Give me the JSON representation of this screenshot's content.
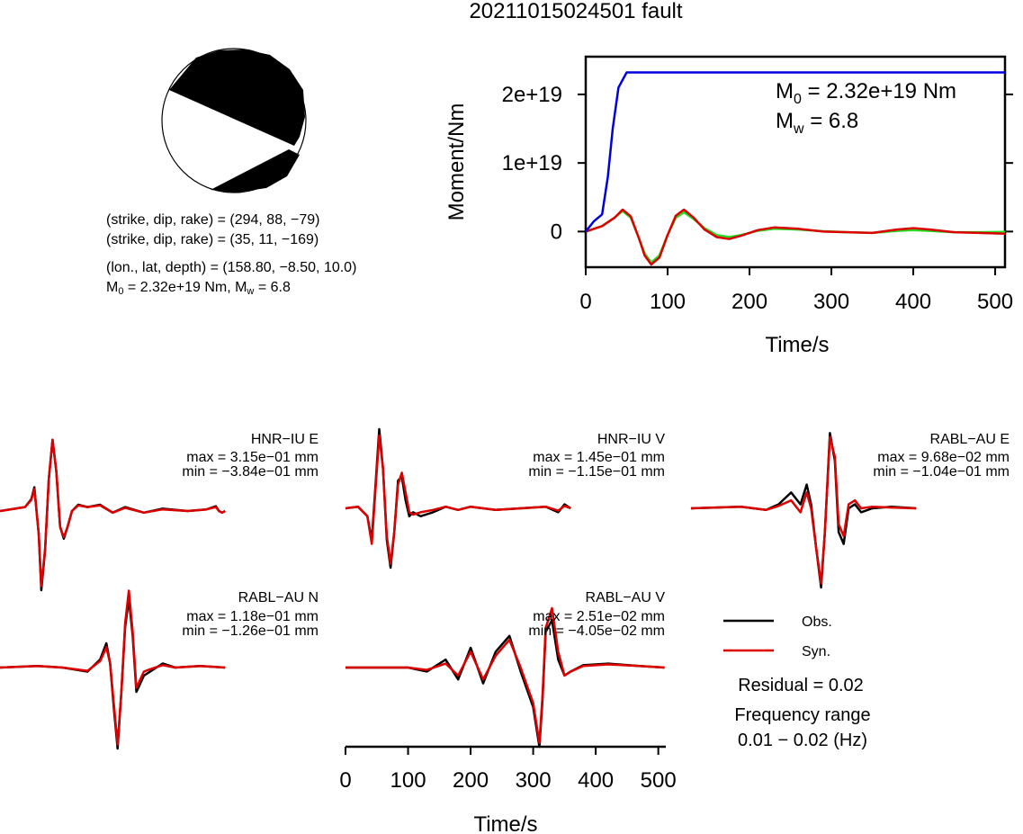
{
  "title": "20211015024501 fault",
  "beachball": {
    "lines": [
      "(strike, dip, rake) = (294, 88, −79)",
      "(strike, dip, rake) = (35, 11, −169)",
      "(lon., lat, depth) = (158.80, −8.50, 10.0)"
    ],
    "moment_text": "M",
    "moment_sub": "0",
    "moment_rest": " = 2.32e+19 Nm, M",
    "mw_sub": "w",
    "mw_rest": " = 6.8"
  },
  "colors": {
    "moment_curve": "#0000dd",
    "green_trace": "#22dd22",
    "obs": "#000000",
    "syn": "#dd0000"
  },
  "stf_panel": {
    "ylabel": "Moment/Nm",
    "xlabel": "Time/s",
    "m0_label": "M",
    "m0_sub": "0",
    "m0_value": " = 2.32e+19 Nm",
    "mw_label": "M",
    "mw_sub": "w",
    "mw_value": " = 6.8"
  },
  "waveforms": {
    "xlabel": "Time/s",
    "stations": [
      {
        "name": "HNR−IU E",
        "max": "max = 3.15e−01 mm",
        "min": "min = −3.84e−01 mm"
      },
      {
        "name": "HNR−IU V",
        "max": "max = 1.45e−01 mm",
        "min": "min = −1.15e−01 mm"
      },
      {
        "name": "RABL−AU E",
        "max": "max = 9.68e−02 mm",
        "min": "min = −1.04e−01 mm"
      },
      {
        "name": "RABL−AU N",
        "max": "max = 1.18e−01 mm",
        "min": "min = −1.26e−01 mm"
      },
      {
        "name": "RABL−AU V",
        "max": "max = 2.51e−02 mm",
        "min": "min = −4.05e−02 mm"
      }
    ]
  },
  "legend": {
    "obs": "Obs.",
    "syn": "Syn.",
    "residual": "Residual = 0.02",
    "freq_title": "Frequency range",
    "freq_value": "0.01 − 0.02 (Hz)"
  },
  "chart_data": [
    {
      "type": "line",
      "title": "20211015024501 fault",
      "xlabel": "Time/s",
      "ylabel": "Moment/Nm",
      "xlim": [
        0,
        512
      ],
      "ylim": [
        -5.2e+18,
        2.55e+19
      ],
      "xticks": [
        0,
        100,
        200,
        300,
        400,
        500
      ],
      "yticks": [
        {
          "v": 0,
          "label": "0"
        },
        {
          "v": 1e+19,
          "label": "1e+19"
        },
        {
          "v": 2e+19,
          "label": "2e+19"
        }
      ],
      "annotations": [
        "M0 = 2.32e+19 Nm",
        "Mw = 6.8"
      ],
      "series": [
        {
          "color": "#0000dd",
          "x": [
            0,
            10,
            20,
            27,
            33,
            40,
            50,
            60,
            100,
            200,
            300,
            400,
            512
          ],
          "y": [
            0,
            1.5e+18,
            2.5e+18,
            8e+18,
            1.5e+19,
            2.1e+19,
            2.32e+19,
            2.32e+19,
            2.32e+19,
            2.32e+19,
            2.32e+19,
            2.32e+19,
            2.32e+19
          ]
        },
        {
          "color": "#22dd22",
          "x": [
            0,
            20,
            35,
            45,
            55,
            65,
            72,
            80,
            90,
            100,
            110,
            120,
            132,
            145,
            160,
            175,
            190,
            210,
            230,
            260,
            290,
            320,
            350,
            380,
            400,
            420,
            450,
            480,
            512
          ],
          "y": [
            0,
            8e+17,
            2e+18,
            3e+18,
            2e+18,
            -1e+18,
            -3.2e+18,
            -4.5e+18,
            -3.5e+18,
            -5e+17,
            2e+18,
            2.8e+18,
            1.8e+18,
            5e+17,
            -5e+17,
            -8e+17,
            -5e+17,
            1e+17,
            4e+17,
            3e+17,
            5e+16,
            -1e+17,
            -2e+17,
            1e+17,
            2e+17,
            1e+17,
            -1e+17,
            -1e+17,
            -5e+16
          ]
        },
        {
          "color": "#dd0000",
          "x": [
            0,
            20,
            35,
            45,
            55,
            65,
            72,
            80,
            90,
            100,
            110,
            120,
            132,
            145,
            160,
            175,
            190,
            210,
            230,
            260,
            290,
            320,
            350,
            380,
            400,
            420,
            450,
            480,
            512
          ],
          "y": [
            0,
            8e+17,
            2e+18,
            3.2e+18,
            2.2e+18,
            -1e+18,
            -3.5e+18,
            -4.8e+18,
            -3.8e+18,
            -5e+17,
            2.3e+18,
            3.2e+18,
            2e+18,
            3e+17,
            -8e+17,
            -1.1e+18,
            -6e+17,
            2e+17,
            6e+17,
            4e+17,
            0,
            -1e+17,
            -2e+17,
            3e+17,
            5e+17,
            3e+17,
            -1e+17,
            -2e+17,
            -3e+17
          ]
        }
      ]
    },
    {
      "type": "line",
      "xlabel": "Time/s",
      "xlim": [
        0,
        512
      ],
      "xticks": [
        0,
        100,
        200,
        300,
        400,
        500
      ],
      "ylim": [
        -1,
        1
      ],
      "panels": [
        {
          "station": "HNR-IU E",
          "obs": {
            "x": [
              0,
              40,
              50,
              55,
              62,
              66,
              72,
              78,
              84,
              90,
              96,
              102,
              108,
              115,
              125,
              140,
              160,
              180,
              200,
              230,
              260,
              300,
              330,
              345,
              350,
              355,
              360
            ],
            "y": [
              0,
              0.05,
              0.15,
              0.3,
              -0.3,
              -1.0,
              -0.5,
              0.4,
              0.9,
              0.5,
              -0.2,
              -0.35,
              -0.2,
              0,
              0.08,
              0.05,
              0.08,
              -0.02,
              0.05,
              -0.02,
              0.03,
              0,
              0.02,
              0.06,
              0,
              -0.02,
              0
            ]
          },
          "syn": {
            "x": [
              0,
              40,
              50,
              55,
              62,
              66,
              72,
              78,
              84,
              90,
              96,
              102,
              108,
              115,
              125,
              140,
              160,
              180,
              200,
              230,
              260,
              300,
              330,
              345,
              350,
              355,
              360
            ],
            "y": [
              0,
              0.05,
              0.14,
              0.28,
              -0.3,
              -0.95,
              -0.48,
              0.4,
              0.9,
              0.5,
              -0.2,
              -0.33,
              -0.2,
              0,
              0.07,
              0.05,
              0.07,
              -0.02,
              0.04,
              -0.02,
              0.02,
              0,
              0.02,
              0.05,
              0,
              -0.02,
              0
            ]
          }
        },
        {
          "station": "HNR-IU V",
          "obs": {
            "x": [
              0,
              20,
              35,
              42,
              48,
              54,
              60,
              66,
              72,
              78,
              84,
              90,
              96,
              102,
              108,
              120,
              140,
              160,
              180,
              200,
              240,
              280,
              320,
              340,
              350,
              360
            ],
            "y": [
              0,
              0.02,
              -0.1,
              -0.4,
              0.3,
              1.0,
              0.5,
              -0.4,
              -0.75,
              -0.3,
              0.35,
              0.4,
              0.1,
              -0.1,
              -0.05,
              -0.1,
              -0.05,
              0.02,
              -0.02,
              0.02,
              -0.02,
              0,
              0.02,
              -0.05,
              0.05,
              0
            ]
          },
          "syn": {
            "x": [
              0,
              20,
              35,
              42,
              48,
              54,
              60,
              66,
              72,
              78,
              84,
              90,
              96,
              102,
              108,
              120,
              140,
              160,
              180,
              200,
              240,
              280,
              320,
              340,
              350,
              360
            ],
            "y": [
              0,
              0.02,
              -0.1,
              -0.45,
              0.25,
              0.92,
              0.5,
              -0.35,
              -0.7,
              -0.3,
              0.3,
              0.45,
              0.2,
              -0.05,
              -0.08,
              -0.05,
              -0.02,
              0.02,
              -0.02,
              0.02,
              -0.02,
              0,
              0.02,
              -0.03,
              0.03,
              0
            ]
          }
        },
        {
          "station": "RABL-AU E",
          "obs": {
            "x": [
              0,
              80,
              120,
              140,
              160,
              175,
              185,
              192,
              200,
              208,
              214,
              222,
              230,
              236,
              244,
              252,
              262,
              272,
              290,
              320,
              360
            ],
            "y": [
              0,
              0.02,
              -0.02,
              0.05,
              0.2,
              0.05,
              0.3,
              0.05,
              -0.5,
              -1.0,
              -0.3,
              0.95,
              0.6,
              -0.3,
              -0.45,
              0,
              0.05,
              -0.05,
              0,
              0.02,
              0
            ]
          },
          "syn": {
            "x": [
              0,
              80,
              120,
              140,
              160,
              175,
              185,
              192,
              200,
              208,
              214,
              222,
              230,
              236,
              244,
              252,
              262,
              272,
              290,
              320,
              360
            ],
            "y": [
              0,
              0.02,
              -0.02,
              0.03,
              0.1,
              -0.05,
              0.2,
              0,
              -0.5,
              -0.95,
              -0.3,
              0.9,
              0.65,
              -0.2,
              -0.35,
              0.05,
              0.1,
              0,
              0.02,
              0.01,
              0
            ]
          }
        },
        {
          "station": "RABL-AU N",
          "obs": {
            "x": [
              0,
              60,
              100,
              140,
              160,
              170,
              176,
              182,
              188,
              194,
              200,
              206,
              212,
              218,
              224,
              230,
              240,
              260,
              280,
              320,
              360
            ],
            "y": [
              0,
              0.02,
              0,
              -0.05,
              0.1,
              0.3,
              0.05,
              -0.5,
              -1.0,
              -0.3,
              0.5,
              0.85,
              0.4,
              -0.3,
              -0.2,
              -0.1,
              -0.05,
              0.05,
              0,
              0.02,
              0
            ]
          },
          "syn": {
            "x": [
              0,
              60,
              100,
              140,
              160,
              170,
              176,
              182,
              188,
              194,
              200,
              206,
              212,
              218,
              224,
              230,
              240,
              260,
              280,
              320,
              360
            ],
            "y": [
              0,
              0.02,
              0,
              -0.04,
              0.08,
              0.25,
              0.05,
              -0.45,
              -0.95,
              -0.3,
              0.55,
              0.95,
              0.45,
              -0.25,
              -0.15,
              -0.05,
              -0.02,
              0.03,
              0,
              0.02,
              0
            ]
          }
        },
        {
          "station": "RABL-AU V",
          "obs": {
            "x": [
              0,
              100,
              130,
              160,
              180,
              200,
              220,
              240,
              262,
              280,
              300,
              310,
              315,
              320,
              330,
              340,
              350,
              360,
              380,
              420,
              470,
              510
            ],
            "y": [
              0,
              0,
              -0.05,
              0.1,
              -0.15,
              0.25,
              -0.2,
              0.2,
              0.4,
              -0.05,
              -0.5,
              -1.0,
              -0.4,
              0.45,
              0.6,
              0.1,
              -0.1,
              -0.05,
              0.03,
              0.05,
              0.02,
              0
            ]
          },
          "syn": {
            "x": [
              0,
              100,
              130,
              160,
              180,
              200,
              220,
              240,
              262,
              280,
              300,
              310,
              315,
              320,
              330,
              340,
              350,
              360,
              380,
              420,
              470,
              510
            ],
            "y": [
              0,
              0,
              -0.03,
              0.05,
              -0.1,
              0.2,
              -0.15,
              0.15,
              0.35,
              0,
              -0.45,
              -0.95,
              -0.35,
              0.5,
              0.75,
              0.2,
              -0.1,
              -0.05,
              0.02,
              0.04,
              0.02,
              0
            ]
          }
        }
      ]
    }
  ]
}
